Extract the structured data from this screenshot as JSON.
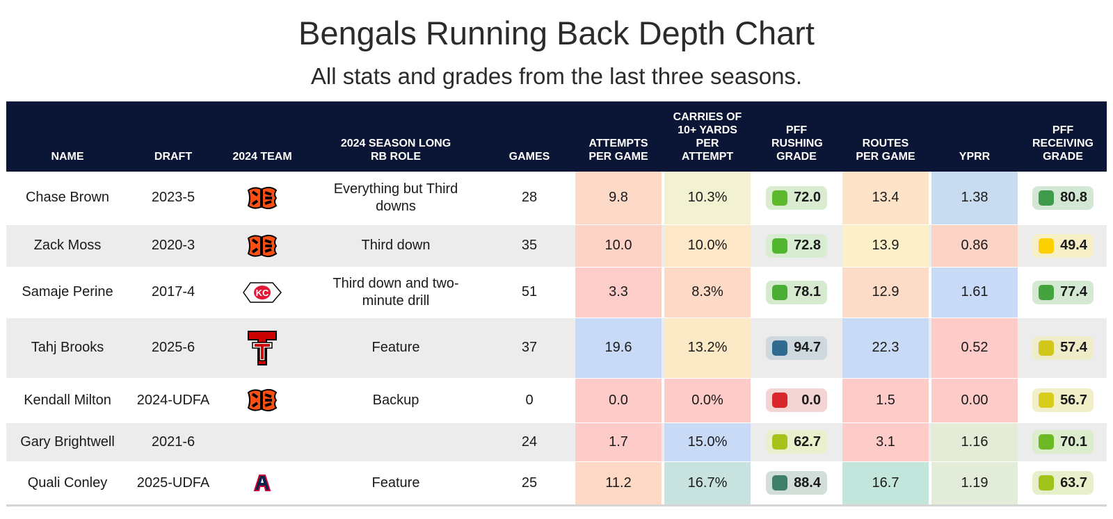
{
  "title": "Bengals Running Back Depth Chart",
  "subtitle": "All stats and grades from the last three seasons.",
  "chart_data": {
    "type": "table",
    "columns": [
      "NAME",
      "DRAFT",
      "2024 TEAM",
      "2024 SEASON LONG RB ROLE",
      "GAMES",
      "ATTEMPTS PER GAME",
      "CARRIES OF 10+ YARDS PER ATTEMPT",
      "PFF RUSHING GRADE",
      "ROUTES PER GAME",
      "YPRR",
      "PFF RECEIVING GRADE"
    ],
    "rows": [
      {
        "name": "Chase Brown",
        "draft": "2023-5",
        "team": "bengals-logo",
        "role": "Everything but Third downs",
        "games": "28",
        "att": "9.8",
        "carries": "10.3%",
        "rush": "72.0",
        "routes": "13.4",
        "yprr": "1.38",
        "recv": "80.8"
      },
      {
        "name": "Zack Moss",
        "draft": "2020-3",
        "team": "bengals-logo",
        "role": "Third down",
        "games": "35",
        "att": "10.0",
        "carries": "10.0%",
        "rush": "72.8",
        "routes": "13.9",
        "yprr": "0.86",
        "recv": "49.4"
      },
      {
        "name": "Samaje Perine",
        "draft": "2017-4",
        "team": "chiefs-logo",
        "role": "Third down and two-minute drill",
        "games": "51",
        "att": "3.3",
        "carries": "8.3%",
        "rush": "78.1",
        "routes": "12.9",
        "yprr": "1.61",
        "recv": "77.4"
      },
      {
        "name": "Tahj Brooks",
        "draft": "2025-6",
        "team": "texas-tech-logo",
        "role": "Feature",
        "games": "37",
        "att": "19.6",
        "carries": "13.2%",
        "rush": "94.7",
        "routes": "22.3",
        "yprr": "0.52",
        "recv": "57.4"
      },
      {
        "name": "Kendall Milton",
        "draft": "2024-UDFA",
        "team": "bengals-logo",
        "role": "Backup",
        "games": "0",
        "att": "0.0",
        "carries": "0.0%",
        "rush": "0.0",
        "routes": "1.5",
        "yprr": "0.00",
        "recv": "56.7"
      },
      {
        "name": "Gary Brightwell",
        "draft": "2021-6",
        "team": "",
        "role": "",
        "games": "24",
        "att": "1.7",
        "carries": "15.0%",
        "rush": "62.7",
        "routes": "3.1",
        "yprr": "1.16",
        "recv": "70.1"
      },
      {
        "name": "Quali Conley",
        "draft": "2025-UDFA",
        "team": "arizona-logo",
        "role": "Feature",
        "games": "25",
        "att": "11.2",
        "carries": "16.7%",
        "rush": "88.4",
        "routes": "16.7",
        "yprr": "1.19",
        "recv": "63.7"
      }
    ],
    "cell_colors": {
      "att": [
        "#fdd9c8",
        "#fdd3c6",
        "#fdcdc9",
        "#c9daf7",
        "#fdcbc8",
        "#fdccc9",
        "#fdd9c6"
      ],
      "carries": [
        "#f2f1d2",
        "#fce8c8",
        "#fcdac6",
        "#fce9c6",
        "#fdcbc8",
        "#c9daf7",
        "#c8e3df"
      ],
      "routes": [
        "#fde4c8",
        "#fcf0c8",
        "#fcdcc6",
        "#c9daf7",
        "#fdcbc8",
        "#fdccc9",
        "#c3e6dc"
      ],
      "yprr": [
        "#c9dcef",
        "#fcd4c6",
        "#c9daf7",
        "#fdcbc8",
        "#fdcbc8",
        "#e4ecd7",
        "#e3ecd9"
      ]
    },
    "grade_colors": {
      "rush": [
        {
          "dot": "#5cb82c",
          "bg": "#d9eccf"
        },
        {
          "dot": "#52b530",
          "bg": "#d7ecd0"
        },
        {
          "dot": "#4aae34",
          "bg": "#d5eacf"
        },
        {
          "dot": "#2f6b8e",
          "bg": "#cdd8df"
        },
        {
          "dot": "#d9262c",
          "bg": "#f4d3d3"
        },
        {
          "dot": "#a7c21a",
          "bg": "#ebefcb"
        },
        {
          "dot": "#3f7f6a",
          "bg": "#d1dfd8"
        }
      ],
      "recv": [
        {
          "dot": "#3f9a4c",
          "bg": "#d3e8d4"
        },
        {
          "dot": "#fdd000",
          "bg": "#f7efc5"
        },
        {
          "dot": "#45a33d",
          "bg": "#d4e9d1"
        },
        {
          "dot": "#d1c61a",
          "bg": "#efedc9"
        },
        {
          "dot": "#d8cd1a",
          "bg": "#f1efc8"
        },
        {
          "dot": "#6cb825",
          "bg": "#dcedce"
        },
        {
          "dot": "#a0c31c",
          "bg": "#e8f0cb"
        }
      ]
    }
  }
}
